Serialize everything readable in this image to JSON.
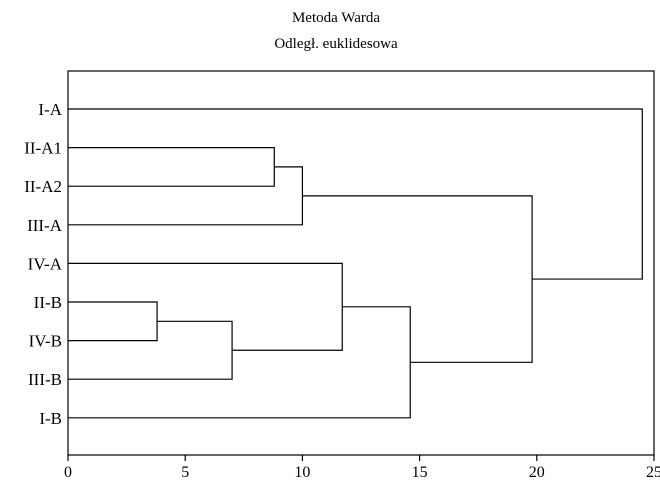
{
  "chart_data": {
    "type": "dendrogram",
    "title": "Metoda Warda",
    "subtitle": "Odległ. euklidesowa",
    "xlabel": "",
    "ylabel": "",
    "xlim": [
      0,
      25
    ],
    "xticks": [
      0,
      5,
      10,
      15,
      20,
      25
    ],
    "grid": false,
    "leaves": [
      "I-A",
      "II-A1",
      "II-A2",
      "III-A",
      "IV-A",
      "II-B",
      "IV-B",
      "III-B",
      "I-B"
    ],
    "merges": [
      {
        "left": "II-B",
        "right": "IV-B",
        "height": 3.8
      },
      {
        "left": "II-A1",
        "right": "II-A2",
        "height": 8.8
      },
      {
        "left": "II-B+IV-B",
        "right": "III-B",
        "height": 7.0
      },
      {
        "left": "II-A1+II-A2",
        "right": "III-A",
        "height": 10.0
      },
      {
        "left": "IV-A",
        "right": "II-B+IV-B+III-B",
        "height": 11.7
      },
      {
        "left": "IV-A+II-B+IV-B+III-B",
        "right": "I-B",
        "height": 14.6
      },
      {
        "left": "II-A1+II-A2+III-A",
        "right": "IV-A+II-B+IV-B+III-B+I-B",
        "height": 19.8
      },
      {
        "left": "I-A",
        "right": "II-A1+II-A2+III-A+IV-A+II-B+IV-B+III-B+I-B",
        "height": 24.5
      }
    ]
  }
}
